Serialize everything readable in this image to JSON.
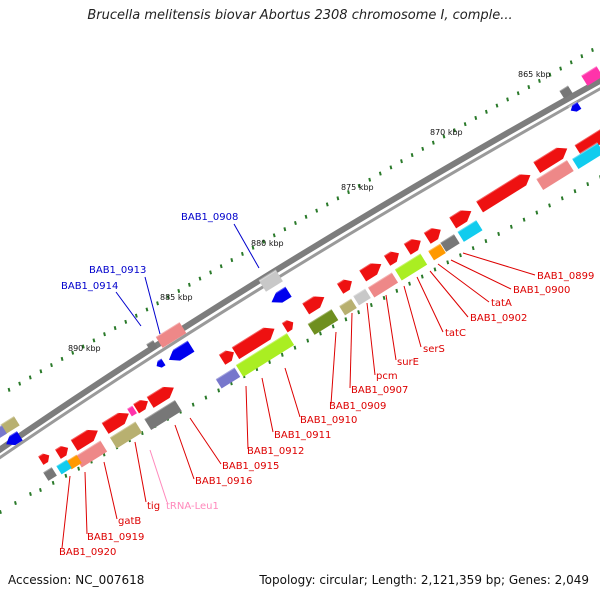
{
  "title": "Brucella melitensis biovar Abortus 2308 chromosome I, comple...",
  "footer": {
    "accession": "Accession: NC_007618",
    "summary": "Topology: circular; Length: 2,121,359 bp; Genes: 2,049"
  },
  "colors": {
    "backbone": "#8a8a8a",
    "gene_red": "#ee1111",
    "gene_salmon": "#ee8888",
    "gene_olive": "#6f8f1f",
    "gene_lime": "#aaee22",
    "gene_khaki": "#b8b070",
    "gene_gray": "#777777",
    "gene_silver": "#c8c8c8",
    "gene_blue": "#0000ee",
    "gene_slate": "#7777cc",
    "gene_cyan": "#11ccee",
    "gene_orange": "#ff9900",
    "gene_magenta": "#ff33aa",
    "label_red": "#dd0000",
    "label_blue": "#0000cc",
    "label_pink": "#ff88bb",
    "tick_green": "#2a7a2a"
  },
  "kbp_labels": [
    "865 kbp",
    "870 kbp",
    "875 kbp",
    "880 kbp",
    "885 kbp",
    "890 kbp"
  ],
  "gene_labels": {
    "red": [
      "BAB1_0899",
      "BAB1_0900",
      "tatA",
      "BAB1_0902",
      "tatC",
      "serS",
      "surE",
      "pcm",
      "BAB1_0907",
      "BAB1_0909",
      "BAB1_0910",
      "BAB1_0911",
      "BAB1_0912",
      "BAB1_0915",
      "BAB1_0916",
      "tig",
      "gatB",
      "BAB1_0919",
      "BAB1_0920"
    ],
    "blue": [
      "BAB1_0908",
      "BAB1_0913",
      "BAB1_0914"
    ],
    "pink": [
      "tRNA-Leu1"
    ]
  }
}
